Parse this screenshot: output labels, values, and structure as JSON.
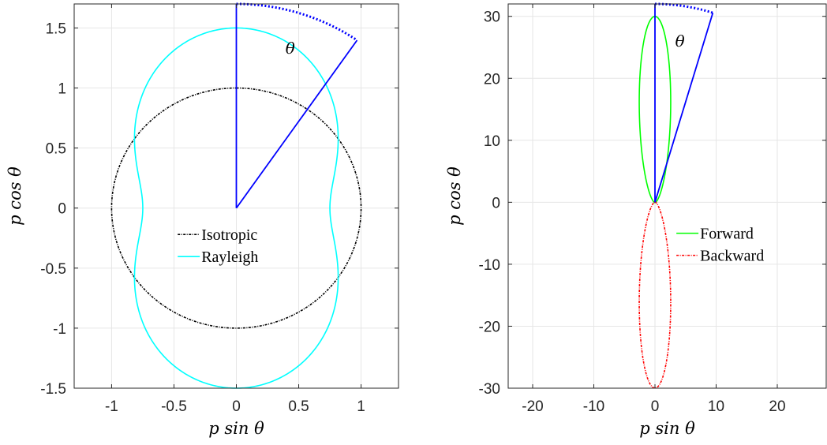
{
  "chart_data": [
    {
      "type": "line",
      "title": "",
      "xlabel": "p sin θ",
      "ylabel": "p cos θ",
      "xlim": [
        -1.3,
        1.3
      ],
      "ylim": [
        -1.5,
        1.7
      ],
      "xticks": [
        -1,
        -0.5,
        0,
        0.5,
        1
      ],
      "xtick_labels": [
        "-1",
        "-0.5",
        "0",
        "0.5",
        "1"
      ],
      "yticks": [
        -1.5,
        -1,
        -0.5,
        0,
        0.5,
        1,
        1.5
      ],
      "ytick_labels": [
        "-1.5",
        "-1",
        "-0.5",
        "0",
        "0.5",
        "1",
        "1.5"
      ],
      "grid": true,
      "legend_position": "center",
      "series": [
        {
          "name": "Isotropic",
          "color": "#000000",
          "style": "dashdot",
          "polar_function": "isotropic",
          "scale": 1.0
        },
        {
          "name": "Rayleigh",
          "color": "#00ffff",
          "style": "solid",
          "polar_function": "rayleigh",
          "scale": 1.0
        }
      ],
      "angle_annotation": {
        "label": "θ",
        "angle_deg": 34.7,
        "radius": 1.7,
        "color": "#0000ff"
      }
    },
    {
      "type": "line",
      "title": "",
      "xlabel": "p sin θ",
      "ylabel": "p cos θ",
      "xlim": [
        -24,
        28
      ],
      "ylim": [
        -30,
        32
      ],
      "xticks": [
        -20,
        -10,
        0,
        10,
        20
      ],
      "xtick_labels": [
        "-20",
        "-10",
        "0",
        "10",
        "20"
      ],
      "yticks": [
        -30,
        -20,
        -10,
        0,
        10,
        20,
        30
      ],
      "ytick_labels": [
        "-30",
        "-20",
        "-10",
        "0",
        "10",
        "20",
        "30"
      ],
      "grid": true,
      "legend_position": "right",
      "series": [
        {
          "name": "Forward",
          "color": "#00ff00",
          "style": "solid",
          "polar_function": "henyey_greenstein_forward",
          "g": 0.8,
          "peak": 30
        },
        {
          "name": "Backward",
          "color": "#ff0000",
          "style": "dashdot",
          "polar_function": "henyey_greenstein_backward",
          "g": 0.8,
          "peak": 30
        }
      ],
      "angle_annotation": {
        "label": "θ",
        "angle_deg": 17.2,
        "radius": 32,
        "color": "#0000ff"
      }
    }
  ]
}
